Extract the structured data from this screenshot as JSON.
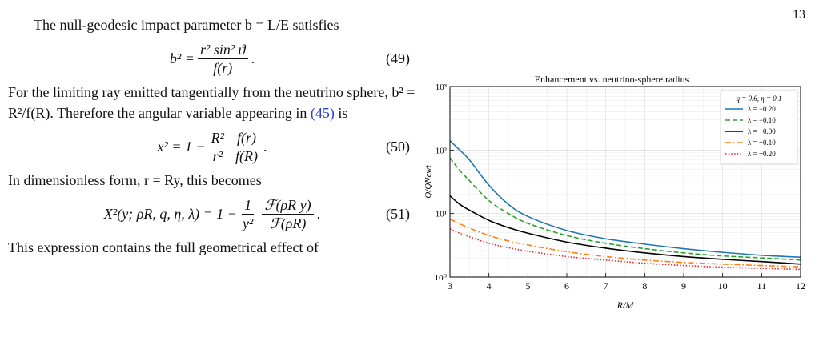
{
  "page": {
    "number": "13"
  },
  "text": {
    "p1": "The null-geodesic impact parameter b = L/E satisfies",
    "eq49": {
      "lhs": "b² = ",
      "num": "r² sin² ϑ",
      "den": "f(r)",
      "tail": ".",
      "label": "(49)"
    },
    "p2_before_ref": "For the limiting ray emitted tangentially from the neutrino sphere, b² = R²/f(R). Therefore the angular variable appearing in ",
    "p2_ref": "(45)",
    "p2_after_ref": " is",
    "eq50": {
      "lhs": "x² = 1 − ",
      "num1": "R²",
      "den1": "r²",
      "num2": "f(r)",
      "den2": "f(R)",
      "tail": ".",
      "label": "(50)"
    },
    "p3": "In dimensionless form, r = Ry, this becomes",
    "eq51": {
      "lhs": "X²(y; ρR, q, η, λ) = 1 − ",
      "num1": "1",
      "den1": "y²",
      "num2": "ℱ(ρR y)",
      "den2": "ℱ(ρR)",
      "tail": ".",
      "label": "(51)"
    },
    "p4": "This expression contains the full geometrical effect of"
  },
  "chart_data": {
    "type": "line",
    "title": "Enhancement vs. neutrino-sphere radius",
    "xlabel": "R/M",
    "ylabel": "Q̇/Q̇Newt",
    "xlim": [
      3,
      12
    ],
    "ylim": [
      1,
      1000
    ],
    "yscale": "log",
    "grid": true,
    "x_ticks": [
      "3",
      "4",
      "5",
      "6",
      "7",
      "8",
      "9",
      "10",
      "11",
      "12"
    ],
    "y_ticks": [
      "10⁰",
      "10¹",
      "10²",
      "10³"
    ],
    "legend": {
      "title": "q = 0.6, η = 0.1",
      "placement": "top-right"
    },
    "x": [
      3.0,
      3.25,
      3.5,
      4.0,
      4.5,
      5.0,
      6.0,
      7.0,
      8.0,
      9.0,
      10.0,
      11.0,
      12.0
    ],
    "series": [
      {
        "name": "λ = −0.20",
        "color": "#1f77b4",
        "dash": "solid",
        "values": [
          140,
          100,
          70,
          28,
          14,
          9.0,
          5.4,
          4.0,
          3.3,
          2.8,
          2.45,
          2.2,
          2.05
        ]
      },
      {
        "name": "λ = −0.10",
        "color": "#2ca02c",
        "dash": "dashed",
        "values": [
          75,
          48,
          33,
          16,
          10,
          7.0,
          4.5,
          3.4,
          2.8,
          2.4,
          2.15,
          2.0,
          1.85
        ]
      },
      {
        "name": "λ = +0.00",
        "color": "#000000",
        "dash": "solid",
        "values": [
          19,
          14,
          11.3,
          7.8,
          6.0,
          4.9,
          3.55,
          2.85,
          2.4,
          2.1,
          1.9,
          1.75,
          1.6
        ]
      },
      {
        "name": "λ = +0.10",
        "color": "#ff7f0e",
        "dash": "dashdot",
        "values": [
          8.2,
          6.9,
          5.9,
          4.5,
          3.7,
          3.2,
          2.5,
          2.1,
          1.85,
          1.7,
          1.6,
          1.52,
          1.45
        ]
      },
      {
        "name": "λ = +0.20",
        "color": "#d62728",
        "dash": "dotted",
        "values": [
          5.7,
          4.9,
          4.3,
          3.4,
          2.9,
          2.55,
          2.1,
          1.85,
          1.65,
          1.52,
          1.43,
          1.37,
          1.32
        ]
      }
    ]
  }
}
